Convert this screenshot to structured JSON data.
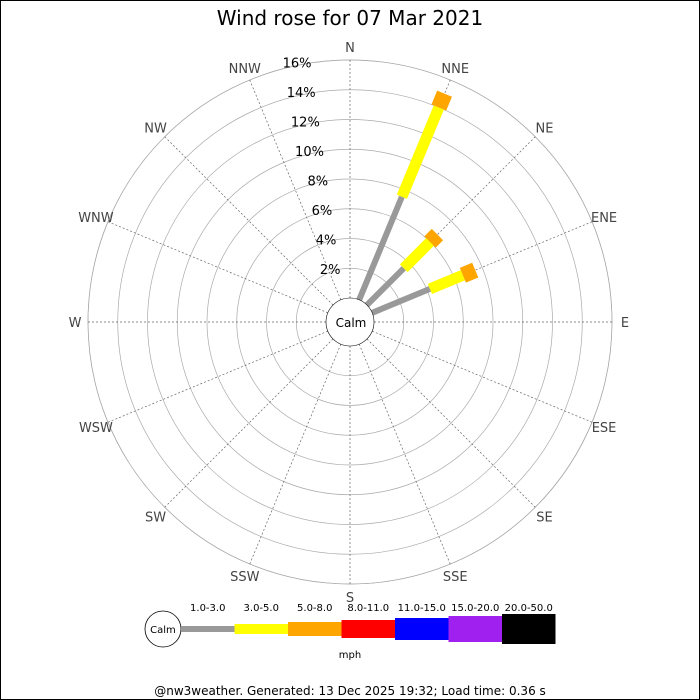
{
  "title": "Wind rose for 07 Mar 2021",
  "footer": "@nw3weather.  Generated: 13 Dec 2025 19:32; Load time: 0.36 s",
  "calm_label": "Calm",
  "unit_label": "mph",
  "chart_data": {
    "type": "wind-rose",
    "title": "Wind rose for 07 Mar 2021",
    "directions": [
      "N",
      "NNE",
      "NE",
      "ENE",
      "E",
      "ESE",
      "SE",
      "SSE",
      "S",
      "SSW",
      "SW",
      "WSW",
      "W",
      "WNW",
      "NW",
      "NNW"
    ],
    "radial_ticks": [
      "2%",
      "4%",
      "6%",
      "8%",
      "10%",
      "12%",
      "14%",
      "16%"
    ],
    "radial_max": 16,
    "speed_bins": [
      {
        "label": "1.0-3.0",
        "color": "#999999"
      },
      {
        "label": "3.0-5.0",
        "color": "#ffff00"
      },
      {
        "label": "5.0-8.0",
        "color": "#ffa500"
      },
      {
        "label": "8.0-11.0",
        "color": "#ff0000"
      },
      {
        "label": "11.0-15.0",
        "color": "#0000ff"
      },
      {
        "label": "15.0-20.0",
        "color": "#a020f0"
      },
      {
        "label": "20.0-50.0",
        "color": "#000000"
      }
    ],
    "series": [
      {
        "direction": "NNE",
        "values": [
          7.5,
          6.5,
          1.0,
          0,
          0,
          0,
          0
        ]
      },
      {
        "direction": "NE",
        "values": [
          3.5,
          2.5,
          0.7,
          0,
          0,
          0,
          0
        ]
      },
      {
        "direction": "ENE",
        "values": [
          4.2,
          2.4,
          0.9,
          0,
          0,
          0,
          0
        ]
      }
    ]
  }
}
